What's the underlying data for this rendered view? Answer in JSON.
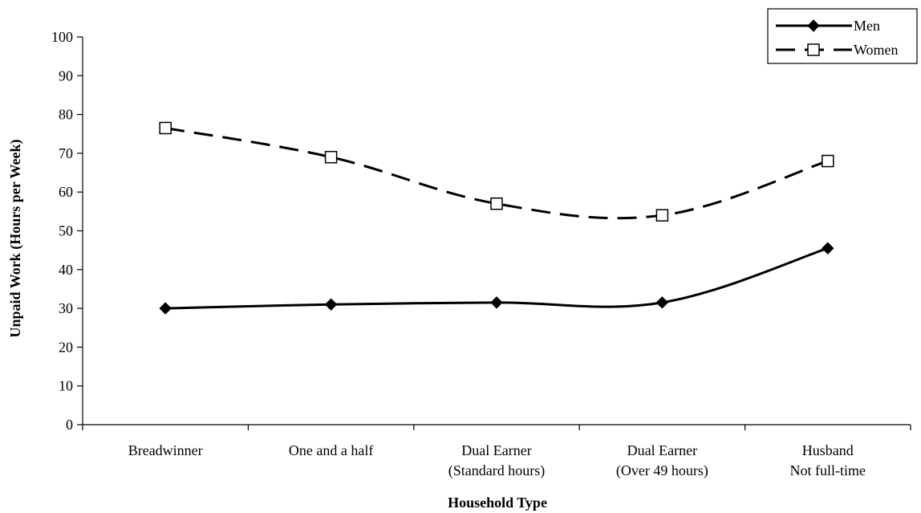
{
  "chart_data": {
    "type": "line",
    "title": "",
    "xlabel": "Household Type",
    "ylabel": "Unpaid Work (Hours per Week)",
    "ylim": [
      0,
      100
    ],
    "yticks": [
      0,
      10,
      20,
      30,
      40,
      50,
      60,
      70,
      80,
      90,
      100
    ],
    "categories": [
      [
        "Breadwinner"
      ],
      [
        "One and a half"
      ],
      [
        "Dual Earner",
        "(Standard hours)"
      ],
      [
        "Dual Earner",
        "(Over 49 hours)"
      ],
      [
        "Husband",
        "Not full-time"
      ]
    ],
    "series": [
      {
        "name": "Men",
        "values": [
          30,
          31,
          31.5,
          31.5,
          45.5
        ],
        "line_style": "solid",
        "marker": "filled-diamond",
        "color": "#000000"
      },
      {
        "name": "Women",
        "values": [
          76.5,
          69,
          57,
          54,
          68
        ],
        "line_style": "dashed",
        "marker": "open-square",
        "color": "#000000"
      }
    ],
    "grid": false,
    "legend_position": "top-right"
  }
}
